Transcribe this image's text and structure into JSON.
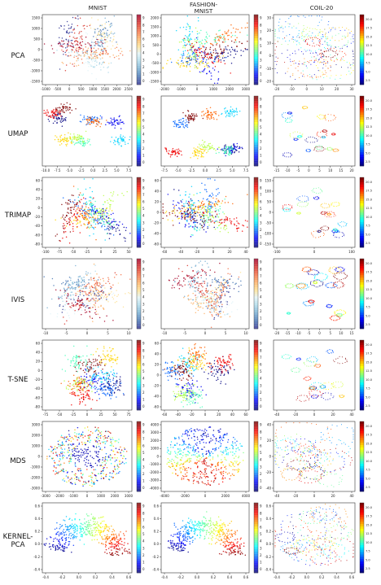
{
  "columns": [
    "MNIST",
    "FASHION-\nMNIST",
    "COIL-20"
  ],
  "rows": [
    "PCA",
    "UMAP",
    "TRIMAP",
    "IVIS",
    "T-SNE",
    "MDS",
    "KERNEL-\nPCA"
  ],
  "colorbars": {
    "ten_class": [
      "0",
      "1",
      "2",
      "3",
      "4",
      "5",
      "6",
      "7",
      "8",
      "9"
    ],
    "ten_class_rdylbu": [
      "0",
      "1",
      "2",
      "3",
      "4",
      "5",
      "6",
      "7",
      "8",
      "9"
    ],
    "coil": [
      "2.5",
      "5.0",
      "7.5",
      "10.0",
      "12.5",
      "15.0",
      "17.5",
      "20.0"
    ]
  },
  "chart_data": [
    {
      "type": "scatter",
      "row": "PCA",
      "column": "MNIST",
      "xticks": [
        "-1000",
        "-500",
        "0",
        "500",
        "1000",
        "1500",
        "2000",
        "2500"
      ],
      "yticks": [
        "-1500",
        "-1000",
        "-500",
        "0",
        "500",
        "1000",
        "1500"
      ],
      "colorbar": "0-9"
    },
    {
      "type": "scatter",
      "row": "PCA",
      "column": "FASHION-MNIST",
      "xticks": [
        "-2000",
        "-1000",
        "0",
        "1000",
        "2000",
        "3000"
      ],
      "yticks": [
        "-1500",
        "-1000",
        "-500",
        "0",
        "500",
        "1000",
        "1500",
        "2000"
      ],
      "colorbar": "0-9"
    },
    {
      "type": "scatter",
      "row": "PCA",
      "column": "COIL-20",
      "xticks": [
        "-20",
        "-10",
        "0",
        "10",
        "20",
        "30"
      ],
      "yticks": [
        "-20",
        "-10",
        "0",
        "10",
        "20",
        "30"
      ],
      "colorbar": "2.5-20.0"
    },
    {
      "type": "scatter",
      "row": "UMAP",
      "column": "MNIST",
      "xticks": [
        "-10.0",
        "-7.5",
        "-5.0",
        "-2.5",
        "0.0",
        "2.5",
        "5.0",
        "7.5"
      ],
      "yticks": [],
      "colorbar": "0-9"
    },
    {
      "type": "scatter",
      "row": "UMAP",
      "column": "FASHION-MNIST",
      "xticks": [
        "-7.5",
        "-5.0",
        "-2.5",
        "0.0",
        "2.5",
        "5.0",
        "7.5"
      ],
      "yticks": [],
      "colorbar": "0-9"
    },
    {
      "type": "scatter",
      "row": "UMAP",
      "column": "COIL-20",
      "xticks": [
        "-15",
        "-10",
        "-5",
        "0",
        "5",
        "10",
        "15",
        "20"
      ],
      "yticks": [],
      "colorbar": "2.5-20.0"
    },
    {
      "type": "scatter",
      "row": "TRIMAP",
      "column": "MNIST",
      "xticks": [
        "-100",
        "-75",
        "-50",
        "-25",
        "0",
        "25",
        "50"
      ],
      "yticks": [
        "-80",
        "-60",
        "-40",
        "-20",
        "0",
        "20",
        "40",
        "60"
      ],
      "colorbar": "0-9"
    },
    {
      "type": "scatter",
      "row": "TRIMAP",
      "column": "FASHION-MNIST",
      "xticks": [
        "-60",
        "-40",
        "-20",
        "0",
        "20",
        "40"
      ],
      "yticks": [
        "-60",
        "-40",
        "-20",
        "0",
        "20",
        "40",
        "60"
      ],
      "colorbar": "0-9"
    },
    {
      "type": "scatter",
      "row": "TRIMAP",
      "column": "COIL-20",
      "xticks": [
        "-100",
        "0",
        "100"
      ],
      "yticks": [
        "-150",
        "-100",
        "-50",
        "0",
        "50",
        "100",
        "150"
      ],
      "colorbar": "2.5-20.0"
    },
    {
      "type": "scatter",
      "row": "IVIS",
      "column": "MNIST",
      "xticks": [
        "-10",
        "-5",
        "0",
        "5",
        "10"
      ],
      "yticks": [],
      "colorbar": "0-9"
    },
    {
      "type": "scatter",
      "row": "IVIS",
      "column": "FASHION-MNIST",
      "xticks": [
        "-10",
        "-5",
        "0",
        "5",
        "10"
      ],
      "yticks": [],
      "colorbar": "0-9"
    },
    {
      "type": "scatter",
      "row": "IVIS",
      "column": "COIL-20",
      "xticks": [
        "-20",
        "-15",
        "-10",
        "-5",
        "0",
        "5",
        "10",
        "15"
      ],
      "yticks": [],
      "colorbar": "2.5-20.0"
    },
    {
      "type": "scatter",
      "row": "T-SNE",
      "column": "MNIST",
      "xticks": [
        "-75",
        "-50",
        "-25",
        "0",
        "25",
        "50",
        "75"
      ],
      "yticks": [
        "-80",
        "-60",
        "-40",
        "-20",
        "0",
        "20",
        "40",
        "60"
      ],
      "colorbar": "0-9"
    },
    {
      "type": "scatter",
      "row": "T-SNE",
      "column": "FASHION-MNIST",
      "xticks": [
        "-60",
        "-40",
        "-20",
        "0",
        "20",
        "40",
        "60"
      ],
      "yticks": [
        "-60",
        "-40",
        "-20",
        "0",
        "20",
        "40",
        "60"
      ],
      "colorbar": "0-9"
    },
    {
      "type": "scatter",
      "row": "T-SNE",
      "column": "COIL-20",
      "xticks": [
        "-40",
        "-20",
        "0",
        "20",
        "40"
      ],
      "yticks": [],
      "colorbar": "2.5-20.0"
    },
    {
      "type": "scatter",
      "row": "MDS",
      "column": "MNIST",
      "xticks": [
        "-3000",
        "-2000",
        "-1000",
        "0",
        "1000",
        "2000",
        "3000"
      ],
      "yticks": [
        "-3000",
        "-2000",
        "-1000",
        "0",
        "1000",
        "2000",
        "3000"
      ],
      "colorbar": "0-9"
    },
    {
      "type": "scatter",
      "row": "MDS",
      "column": "FASHION-MNIST",
      "xticks": [
        "-4000",
        "-2000",
        "0",
        "2000",
        "4000"
      ],
      "yticks": [
        "-4000",
        "-3000",
        "-2000",
        "-1000",
        "0",
        "1000",
        "2000",
        "3000",
        "4000"
      ],
      "colorbar": "0-9"
    },
    {
      "type": "scatter",
      "row": "MDS",
      "column": "COIL-20",
      "xticks": [
        "-40",
        "-20",
        "0",
        "20",
        "40"
      ],
      "yticks": [
        "-40",
        "-20",
        "0",
        "20",
        "40"
      ],
      "colorbar": "2.5-20.0"
    },
    {
      "type": "scatter",
      "row": "KERNEL-PCA",
      "column": "MNIST",
      "xticks": [
        "-0.4",
        "-0.2",
        "0.0",
        "0.2",
        "0.4",
        "0.6"
      ],
      "yticks": [
        "-0.4",
        "-0.2",
        "0.0",
        "0.2",
        "0.4",
        "0.6"
      ],
      "colorbar": "0-9"
    },
    {
      "type": "scatter",
      "row": "KERNEL-PCA",
      "column": "FASHION-MNIST",
      "xticks": [
        "-0.4",
        "-0.2",
        "0.0",
        "0.2",
        "0.4",
        "0.6"
      ],
      "yticks": [
        "-0.4",
        "-0.2",
        "0.0",
        "0.2",
        "0.4",
        "0.6"
      ],
      "colorbar": "0-9"
    },
    {
      "type": "scatter",
      "row": "KERNEL-PCA",
      "column": "COIL-20",
      "xticks": [
        "-0.4",
        "-0.2",
        "0.0",
        "0.2",
        "0.4",
        "0.6"
      ],
      "yticks": [
        "-0.4",
        "-0.2",
        "0.0",
        "0.2",
        "0.4",
        "0.6"
      ],
      "colorbar": "2.5-20.0"
    }
  ]
}
